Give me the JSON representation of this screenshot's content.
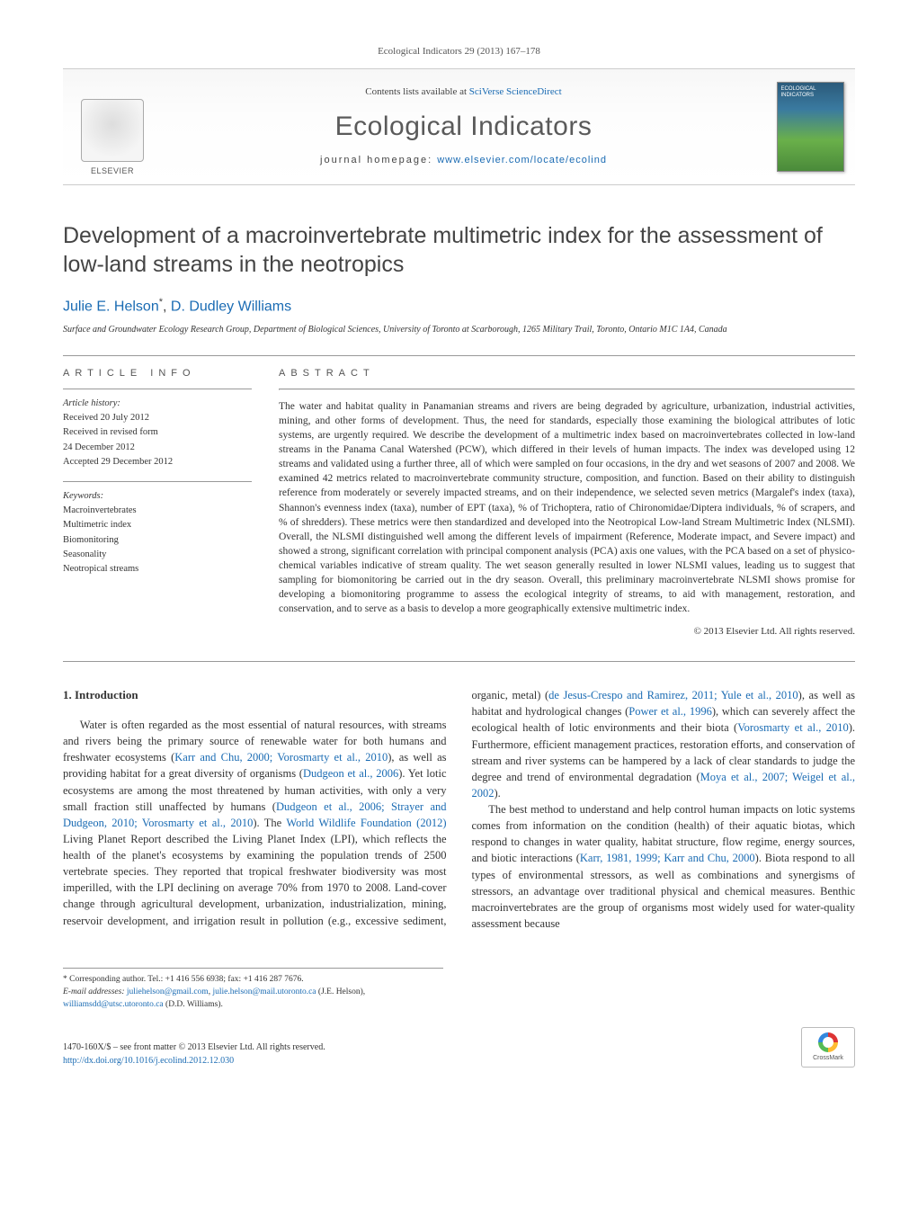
{
  "journal_ref": "Ecological Indicators 29 (2013) 167–178",
  "header": {
    "publisher_name": "ELSEVIER",
    "contents_prefix": "Contents lists available at ",
    "contents_link": "SciVerse ScienceDirect",
    "journal_name": "Ecological Indicators",
    "homepage_prefix": "journal homepage: ",
    "homepage_link": "www.elsevier.com/locate/ecolind"
  },
  "title": "Development of a macroinvertebrate multimetric index for the assessment of low-land streams in the neotropics",
  "authors_html": "Julie E. Helson*, D. Dudley Williams",
  "affiliation": "Surface and Groundwater Ecology Research Group, Department of Biological Sciences, University of Toronto at Scarborough, 1265 Military Trail, Toronto, Ontario M1C 1A4, Canada",
  "info": {
    "article_info_heading": "ARTICLE INFO",
    "history_label": "Article history:",
    "history": [
      "Received 20 July 2012",
      "Received in revised form",
      "24 December 2012",
      "Accepted 29 December 2012"
    ],
    "keywords_label": "Keywords:",
    "keywords": [
      "Macroinvertebrates",
      "Multimetric index",
      "Biomonitoring",
      "Seasonality",
      "Neotropical streams"
    ]
  },
  "abstract": {
    "heading": "ABSTRACT",
    "text": "The water and habitat quality in Panamanian streams and rivers are being degraded by agriculture, urbanization, industrial activities, mining, and other forms of development. Thus, the need for standards, especially those examining the biological attributes of lotic systems, are urgently required. We describe the development of a multimetric index based on macroinvertebrates collected in low-land streams in the Panama Canal Watershed (PCW), which differed in their levels of human impacts. The index was developed using 12 streams and validated using a further three, all of which were sampled on four occasions, in the dry and wet seasons of 2007 and 2008. We examined 42 metrics related to macroinvertebrate community structure, composition, and function. Based on their ability to distinguish reference from moderately or severely impacted streams, and on their independence, we selected seven metrics (Margalef's index (taxa), Shannon's evenness index (taxa), number of EPT (taxa), % of Trichoptera, ratio of Chironomidae/Diptera individuals, % of scrapers, and % of shredders). These metrics were then standardized and developed into the Neotropical Low-land Stream Multimetric Index (NLSMI). Overall, the NLSMI distinguished well among the different levels of impairment (Reference, Moderate impact, and Severe impact) and showed a strong, significant correlation with principal component analysis (PCA) axis one values, with the PCA based on a set of physico-chemical variables indicative of stream quality. The wet season generally resulted in lower NLSMI values, leading us to suggest that sampling for biomonitoring be carried out in the dry season. Overall, this preliminary macroinvertebrate NLSMI shows promise for developing a biomonitoring programme to assess the ecological integrity of streams, to aid with management, restoration, and conservation, and to serve as a basis to develop a more geographically extensive multimetric index.",
    "copyright": "© 2013 Elsevier Ltd. All rights reserved."
  },
  "body": {
    "section1_heading": "1. Introduction",
    "para1_parts": [
      "Water is often regarded as the most essential of natural resources, with streams and rivers being the primary source of renewable water for both humans and freshwater ecosystems (",
      "Karr and Chu, 2000; Vorosmarty et al., 2010",
      "), as well as providing habitat for a great diversity of organisms (",
      "Dudgeon et al., 2006",
      "). Yet lotic ecosystems are among the most threatened by human activities, with only a very small fraction still unaffected by humans (",
      "Dudgeon et al., 2006; Strayer and Dudgeon, 2010; Vorosmarty et al., 2010",
      "). The ",
      "World Wildlife Foundation (2012)",
      " Living Planet Report described the Living Planet Index (LPI), which reflects the health of the planet's ecosystems by examining the population trends of 2500 vertebrate species. They reported that tropical freshwater biodiversity was most imperilled, with the LPI declining on average 70% from 1970 to 2008. Land-cover change through agricultural development, urbanization, industrialization, mining, reservoir development, and irrigation result in pollution (e.g., excessive sediment, organic, metal) (",
      "de Jesus-Crespo and Ramirez, 2011; Yule et al., 2010",
      "), as well as habitat and hydrological changes (",
      "Power et al., 1996",
      "), which can severely affect the ecological health of lotic environments and their biota (",
      "Vorosmarty et al., 2010",
      "). Furthermore, efficient management practices, restoration efforts, and conservation of stream and river systems can be hampered by a lack of clear standards to judge the degree and trend of environmental degradation (",
      "Moya et al., 2007; Weigel et al., 2002",
      ")."
    ],
    "para2_parts": [
      "The best method to understand and help control human impacts on lotic systems comes from information on the condition (health) of their aquatic biotas, which respond to changes in water quality, habitat structure, flow regime, energy sources, and biotic interactions (",
      "Karr, 1981, 1999; Karr and Chu, 2000",
      "). Biota respond to all types of environmental stressors, as well as combinations and synergisms of stressors, an advantage over traditional physical and chemical measures. Benthic macroinvertebrates are the group of organisms most widely used for water-quality assessment because"
    ]
  },
  "footnote": {
    "corr_label": "* Corresponding author. Tel.: +1 416 556 6938; fax: +1 416 287 7676.",
    "email_label": "E-mail addresses: ",
    "emails": [
      "juliehelson@gmail.com",
      "julie.helson@mail.utoronto.ca"
    ],
    "email_name1": " (J.E. Helson), ",
    "email3": "williamsdd@utsc.utoronto.ca",
    "email_name2": " (D.D. Williams)."
  },
  "footer": {
    "issn_line": "1470-160X/$ – see front matter © 2013 Elsevier Ltd. All rights reserved.",
    "doi_link": "http://dx.doi.org/10.1016/j.ecolind.2012.12.030",
    "crossmark_label": "CrossMark"
  },
  "colors": {
    "link": "#1a6bb3",
    "text": "#333333",
    "heading_gray": "#555555"
  }
}
